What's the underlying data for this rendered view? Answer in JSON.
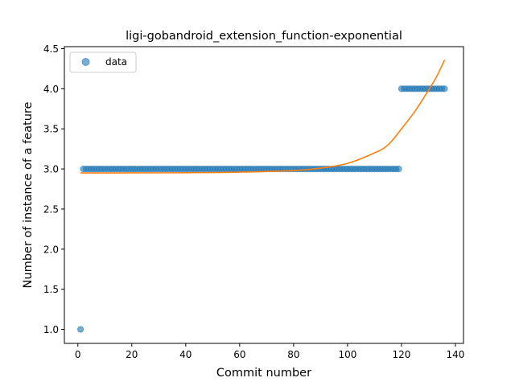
{
  "chart_data": {
    "type": "scatter",
    "title": "ligi-gobandroid_extension_function-exponential",
    "xlabel": "Commit number",
    "ylabel": "Number of instance of a feature",
    "xlim": [
      -5,
      143
    ],
    "ylim": [
      0.825,
      4.525
    ],
    "xticks": [
      0,
      20,
      40,
      60,
      80,
      100,
      120,
      140
    ],
    "yticks": [
      1.0,
      1.5,
      2.0,
      2.5,
      3.0,
      3.5,
      4.0,
      4.5
    ],
    "grid": false,
    "legend": {
      "position": "top-left",
      "entries": [
        "data"
      ]
    },
    "series": [
      {
        "name": "data",
        "kind": "scatter",
        "color": "#1f77b4",
        "segments": [
          {
            "x_start": 1,
            "x_end": 1,
            "y": 1.0
          },
          {
            "x_start": 2,
            "x_end": 119,
            "y": 3.0
          },
          {
            "x_start": 120,
            "x_end": 136,
            "y": 4.0
          }
        ]
      },
      {
        "kind": "line",
        "color": "#ff7f0e",
        "fit": "exponential",
        "x": [
          1,
          20,
          40,
          60,
          80,
          90,
          100,
          110,
          115,
          120,
          125,
          130,
          133,
          136
        ],
        "y": [
          2.95,
          2.951,
          2.953,
          2.96,
          2.98,
          3.01,
          3.07,
          3.2,
          3.3,
          3.5,
          3.72,
          3.98,
          4.15,
          4.36
        ]
      }
    ]
  }
}
